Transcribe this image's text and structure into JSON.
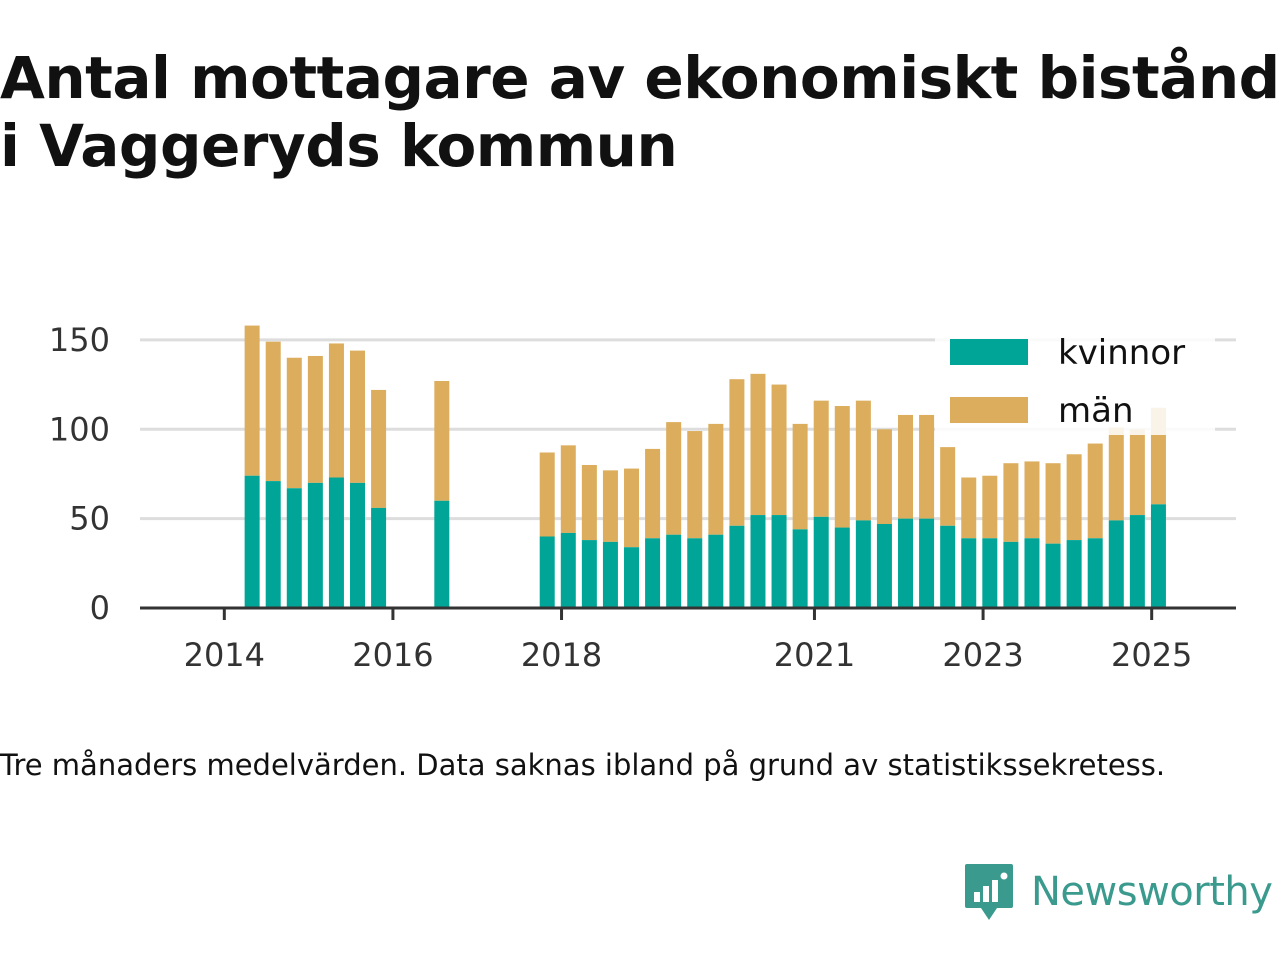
{
  "title": "Antal mottagare av ekonomiskt bistånd i Vaggeryds kommun",
  "note": "Tre månaders medelvärden. Data saknas ibland på grund av statistikssekretess.",
  "brand": {
    "name": "Newsworthy",
    "icon": "newsworthy-logo-icon"
  },
  "colors": {
    "kvinnor": "#00a597",
    "man": "#dcad5c",
    "grid": "#dddddd",
    "axis": "#333333",
    "brand": "#3a9a8e"
  },
  "chart_data": {
    "type": "bar",
    "stacked": true,
    "x_unit": "year",
    "xlim": [
      2013.0,
      2026.0
    ],
    "ylim": [
      0,
      160
    ],
    "yticks": [
      0,
      50,
      100,
      150
    ],
    "xticks": [
      2014,
      2016,
      2018,
      2021,
      2023,
      2025
    ],
    "grid": true,
    "legend_position": "top-right",
    "series": [
      {
        "name": "kvinnor",
        "color": "#00a597"
      },
      {
        "name": "män",
        "color": "#dcad5c"
      }
    ],
    "x": [
      2014.33,
      2014.58,
      2014.83,
      2015.08,
      2015.33,
      2015.58,
      2015.83,
      2016.58,
      2017.83,
      2018.08,
      2018.33,
      2018.58,
      2018.83,
      2019.08,
      2019.33,
      2019.58,
      2019.83,
      2020.08,
      2020.33,
      2020.58,
      2020.83,
      2021.08,
      2021.33,
      2021.58,
      2021.83,
      2022.08,
      2022.33,
      2022.58,
      2022.83,
      2023.08,
      2023.33,
      2023.58,
      2023.83,
      2024.08,
      2024.33,
      2024.58,
      2024.83,
      2025.08
    ],
    "kvinnor": [
      74,
      71,
      67,
      70,
      73,
      70,
      56,
      60,
      40,
      42,
      38,
      37,
      34,
      39,
      41,
      39,
      41,
      46,
      52,
      52,
      44,
      51,
      45,
      49,
      47,
      50,
      50,
      46,
      39,
      39,
      37,
      39,
      36,
      38,
      39,
      49,
      52,
      58
    ],
    "totals": [
      158,
      149,
      140,
      141,
      148,
      144,
      122,
      127,
      87,
      91,
      80,
      77,
      78,
      89,
      104,
      99,
      103,
      128,
      131,
      125,
      103,
      116,
      113,
      116,
      100,
      108,
      108,
      90,
      73,
      74,
      81,
      82,
      81,
      86,
      92,
      101,
      100,
      112
    ]
  }
}
